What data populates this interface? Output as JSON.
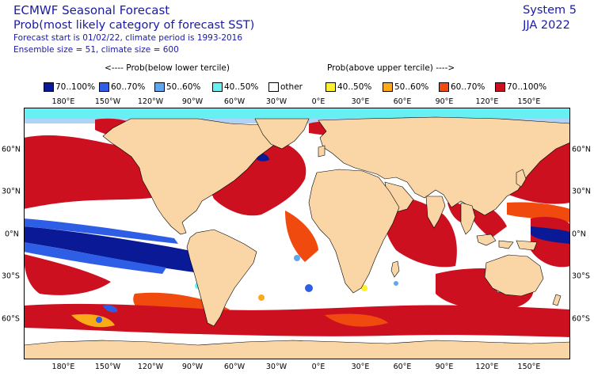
{
  "header": {
    "title": "ECMWF Seasonal Forecast",
    "subtitle": "Prob(most likely category of forecast SST)",
    "forecast_info": "Forecast start is 01/02/22, climate period is 1993-2016",
    "ensemble_info": "Ensemble size = 51, climate size = 600",
    "system": "System 5",
    "season": "JJA 2022"
  },
  "legend": {
    "below_heading": "<---- Prob(below lower tercile)",
    "above_heading": "Prob(above upper tercile) ---->",
    "items": [
      {
        "label": "70..100%",
        "color": "#0a1a96"
      },
      {
        "label": "60..70%",
        "color": "#2f5ee6"
      },
      {
        "label": "50..60%",
        "color": "#5fa8ef"
      },
      {
        "label": "40..50%",
        "color": "#66f0f4"
      },
      {
        "label": "other",
        "color": "#ffffff"
      },
      {
        "label": "40..50%",
        "color": "#fff12a"
      },
      {
        "label": "50..60%",
        "color": "#fbaa1a"
      },
      {
        "label": "60..70%",
        "color": "#f04a0f"
      },
      {
        "label": "70..100%",
        "color": "#cc1020"
      }
    ]
  },
  "colors": {
    "land": "#fad5a5",
    "coast": "#000000"
  },
  "axes": {
    "lon_labels": [
      "180°E",
      "150°W",
      "120°W",
      "90°W",
      "60°W",
      "30°W",
      "0°E",
      "30°E",
      "60°E",
      "90°E",
      "120°E",
      "150°E"
    ],
    "lat_labels": [
      "60°N",
      "30°N",
      "0°N",
      "30°S",
      "60°S"
    ]
  }
}
